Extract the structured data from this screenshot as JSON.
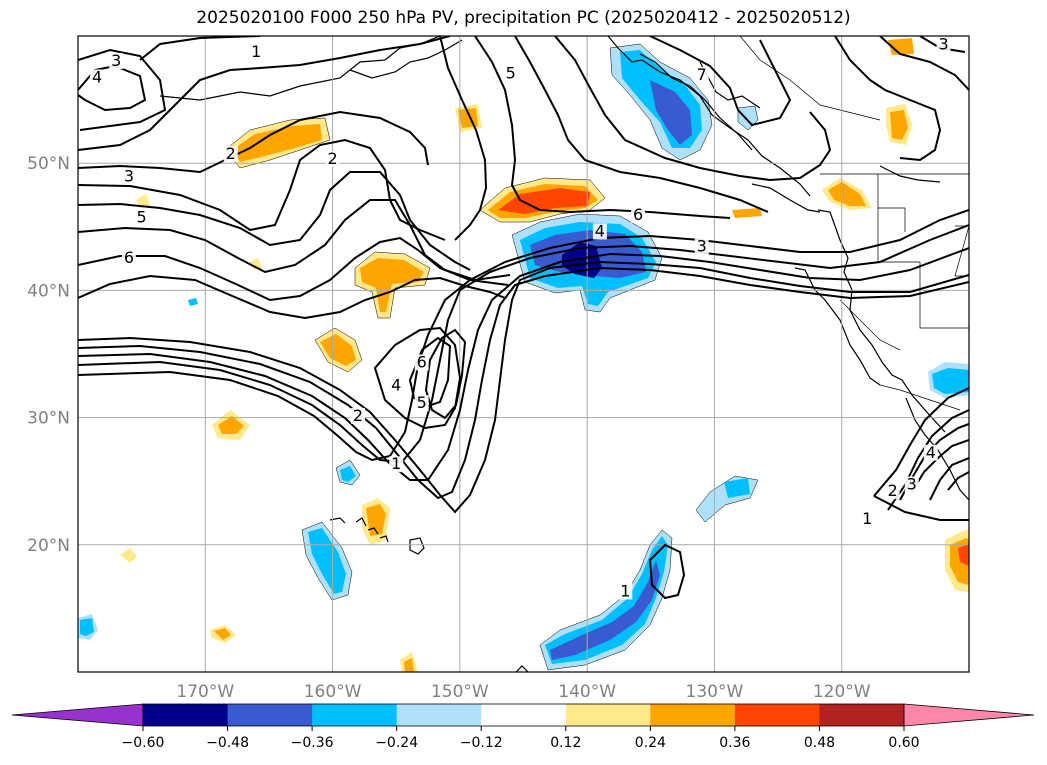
{
  "title": "2025020100 F000 250 hPa PV, precipitation PC (2025020412 - 2025020512)",
  "map": {
    "lon_range": [
      -180,
      -110
    ],
    "lat_range": [
      10,
      60
    ],
    "lat_ticks": [
      {
        "value": 20,
        "label": "20°N"
      },
      {
        "value": 30,
        "label": "30°N"
      },
      {
        "value": 40,
        "label": "40°N"
      },
      {
        "value": 50,
        "label": "50°N"
      }
    ],
    "lon_ticks": [
      {
        "value": -170,
        "label": "170°W"
      },
      {
        "value": -160,
        "label": "160°W"
      },
      {
        "value": -150,
        "label": "150°W"
      },
      {
        "value": -140,
        "label": "140°W"
      },
      {
        "value": -130,
        "label": "130°W"
      },
      {
        "value": -120,
        "label": "120°W"
      }
    ],
    "grid": true,
    "contour_labels": [
      {
        "text": "3",
        "lon": -177.0,
        "lat": 57.8
      },
      {
        "text": "4",
        "lon": -178.5,
        "lat": 56.5
      },
      {
        "text": "1",
        "lon": -166.0,
        "lat": 58.5
      },
      {
        "text": "2",
        "lon": -168.0,
        "lat": 50.5
      },
      {
        "text": "2",
        "lon": -160.0,
        "lat": 50.1
      },
      {
        "text": "3",
        "lon": -176.0,
        "lat": 48.7
      },
      {
        "text": "5",
        "lon": -175.0,
        "lat": 45.5
      },
      {
        "text": "6",
        "lon": -176.0,
        "lat": 42.3
      },
      {
        "text": "5",
        "lon": -146.0,
        "lat": 56.8
      },
      {
        "text": "7",
        "lon": -131.0,
        "lat": 56.7
      },
      {
        "text": "3",
        "lon": -112.0,
        "lat": 59.1
      },
      {
        "text": "4",
        "lon": -139.0,
        "lat": 44.4
      },
      {
        "text": "6",
        "lon": -136.0,
        "lat": 45.7
      },
      {
        "text": "3",
        "lon": -131.0,
        "lat": 43.2
      },
      {
        "text": "6",
        "lon": -153.0,
        "lat": 34.1
      },
      {
        "text": "4",
        "lon": -155.0,
        "lat": 32.3
      },
      {
        "text": "5",
        "lon": -153.0,
        "lat": 30.9
      },
      {
        "text": "2",
        "lon": -158.0,
        "lat": 29.9
      },
      {
        "text": "1",
        "lon": -155.0,
        "lat": 26.1
      },
      {
        "text": "1",
        "lon": -137.0,
        "lat": 16.1
      },
      {
        "text": "1",
        "lon": -118.0,
        "lat": 21.8
      },
      {
        "text": "2",
        "lon": -116.0,
        "lat": 24.0
      },
      {
        "text": "3",
        "lon": -114.5,
        "lat": 24.5
      },
      {
        "text": "4",
        "lon": -113.0,
        "lat": 27.0
      }
    ]
  },
  "colorbar": {
    "levels": [
      "−0.60",
      "−0.48",
      "−0.36",
      "−0.24",
      "−0.12",
      "0.12",
      "0.24",
      "0.36",
      "0.48",
      "0.60"
    ],
    "under_color": "#9932cc",
    "over_color": "#ff88aa",
    "colors": [
      "#00008b",
      "#3a5bd0",
      "#00bfff",
      "#afe0fa",
      "#ffffff",
      "#ffe98a",
      "#ffa500",
      "#ff4500",
      "#b22222"
    ]
  }
}
